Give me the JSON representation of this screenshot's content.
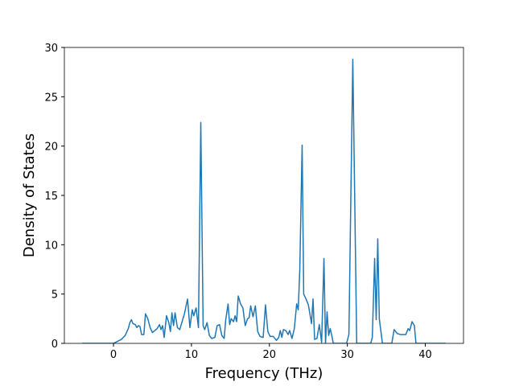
{
  "chart_data": {
    "type": "line",
    "x_label": "Frequency (THz)",
    "y_label": "Density of States",
    "color": "#1f77b4",
    "x": [
      -4,
      0,
      0.5,
      1,
      1.5,
      1.9,
      2.1,
      2.3,
      2.5,
      2.8,
      3.0,
      3.2,
      3.4,
      3.6,
      3.9,
      4.1,
      4.4,
      4.7,
      5.0,
      5.3,
      5.6,
      5.9,
      6.1,
      6.3,
      6.5,
      6.8,
      7.1,
      7.3,
      7.5,
      7.7,
      7.9,
      8.2,
      8.5,
      8.8,
      9.1,
      9.5,
      9.8,
      10.1,
      10.3,
      10.6,
      10.9,
      11.2,
      11.5,
      11.7,
      12.0,
      12.3,
      12.6,
      13.0,
      13.3,
      13.6,
      13.9,
      14.2,
      14.4,
      14.7,
      14.9,
      15.1,
      15.4,
      15.6,
      15.8,
      16.0,
      16.3,
      16.6,
      16.9,
      17.2,
      17.4,
      17.6,
      17.9,
      18.2,
      18.5,
      18.8,
      19.2,
      19.5,
      19.8,
      20.1,
      20.5,
      20.9,
      21.2,
      21.4,
      21.6,
      21.8,
      22.1,
      22.4,
      22.6,
      22.9,
      23.2,
      23.5,
      23.7,
      23.9,
      24.2,
      24.4,
      24.7,
      25.0,
      25.3,
      25.4,
      25.6,
      25.8,
      26.1,
      26.4,
      26.7,
      27.0,
      27.2,
      27.4,
      27.6,
      27.8,
      28.0,
      28.2,
      29.9,
      30.2,
      30.7,
      31.2,
      33.0,
      33.2,
      33.5,
      33.7,
      33.9,
      34.1,
      34.5,
      35.7,
      36.0,
      36.4,
      36.8,
      37.2,
      37.5,
      37.8,
      38.0,
      38.3,
      38.6,
      38.8,
      42.6
    ],
    "values": [
      0,
      0,
      0.2,
      0.4,
      0.8,
      1.5,
      2.1,
      2.4,
      2.0,
      1.9,
      1.6,
      1.8,
      1.7,
      0.9,
      0.9,
      3.0,
      2.5,
      1.6,
      1.1,
      1.3,
      1.5,
      1.9,
      1.4,
      1.8,
      0.6,
      2.8,
      2.1,
      1.2,
      3.1,
      1.8,
      3.1,
      1.6,
      1.4,
      2.2,
      3.0,
      4.5,
      1.6,
      3.4,
      2.8,
      3.6,
      1.6,
      22.4,
      1.8,
      1.4,
      2.1,
      0.8,
      0.5,
      0.6,
      1.8,
      1.9,
      0.8,
      0.5,
      2.4,
      4.0,
      1.9,
      2.5,
      2.2,
      2.8,
      2.2,
      4.8,
      4.0,
      3.6,
      1.8,
      2.5,
      2.6,
      3.8,
      2.7,
      3.8,
      1.2,
      0.7,
      0.6,
      3.9,
      1.2,
      0.7,
      0.7,
      0.3,
      0.6,
      1.3,
      0.6,
      1.4,
      1.3,
      0.9,
      1.3,
      0.5,
      1.5,
      4.0,
      3.4,
      7.5,
      20.1,
      5.0,
      4.5,
      3.9,
      2.5,
      2.0,
      4.5,
      0.4,
      0.5,
      1.9,
      0.1,
      8.6,
      0,
      3.2,
      0.8,
      1.5,
      0.8,
      0,
      0,
      0.9,
      28.8,
      0,
      0,
      0.6,
      8.6,
      2.4,
      10.6,
      2.5,
      0,
      0,
      1.4,
      1.0,
      0.9,
      0.9,
      0.9,
      1.5,
      1.3,
      2.2,
      1.8,
      0,
      0
    ],
    "xlim": [
      -6.3,
      44.9
    ],
    "ylim": [
      0,
      30
    ],
    "xticks": [
      0,
      10,
      20,
      30,
      40
    ],
    "yticks": [
      0,
      5,
      10,
      15,
      20,
      25,
      30
    ]
  }
}
